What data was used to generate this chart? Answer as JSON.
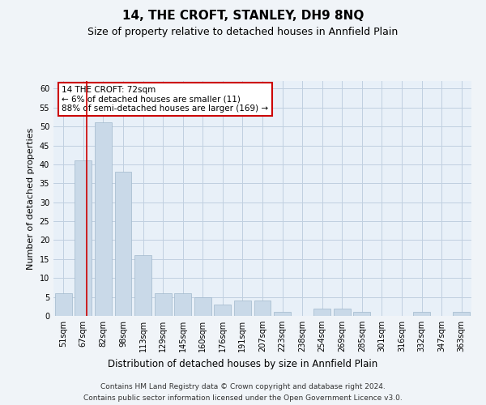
{
  "title": "14, THE CROFT, STANLEY, DH9 8NQ",
  "subtitle": "Size of property relative to detached houses in Annfield Plain",
  "xlabel": "Distribution of detached houses by size in Annfield Plain",
  "ylabel": "Number of detached properties",
  "categories": [
    "51sqm",
    "67sqm",
    "82sqm",
    "98sqm",
    "113sqm",
    "129sqm",
    "145sqm",
    "160sqm",
    "176sqm",
    "191sqm",
    "207sqm",
    "223sqm",
    "238sqm",
    "254sqm",
    "269sqm",
    "285sqm",
    "301sqm",
    "316sqm",
    "332sqm",
    "347sqm",
    "363sqm"
  ],
  "values": [
    6,
    41,
    51,
    38,
    16,
    6,
    6,
    5,
    3,
    4,
    4,
    1,
    0,
    2,
    2,
    1,
    0,
    0,
    1,
    0,
    1
  ],
  "bar_color": "#c9d9e8",
  "bar_edge_color": "#a0b8cc",
  "grid_color": "#c0d0e0",
  "background_color": "#e8f0f8",
  "fig_background_color": "#f0f4f8",
  "annotation_box_text": "14 THE CROFT: 72sqm\n← 6% of detached houses are smaller (11)\n88% of semi-detached houses are larger (169) →",
  "annotation_box_color": "#ffffff",
  "annotation_box_edge_color": "#cc0000",
  "red_line_x": 1.18,
  "ylim": [
    0,
    62
  ],
  "yticks": [
    0,
    5,
    10,
    15,
    20,
    25,
    30,
    35,
    40,
    45,
    50,
    55,
    60
  ],
  "footer_line1": "Contains HM Land Registry data © Crown copyright and database right 2024.",
  "footer_line2": "Contains public sector information licensed under the Open Government Licence v3.0.",
  "title_fontsize": 11,
  "subtitle_fontsize": 9,
  "xlabel_fontsize": 8.5,
  "ylabel_fontsize": 8,
  "tick_fontsize": 7,
  "annotation_fontsize": 7.5,
  "footer_fontsize": 6.5
}
